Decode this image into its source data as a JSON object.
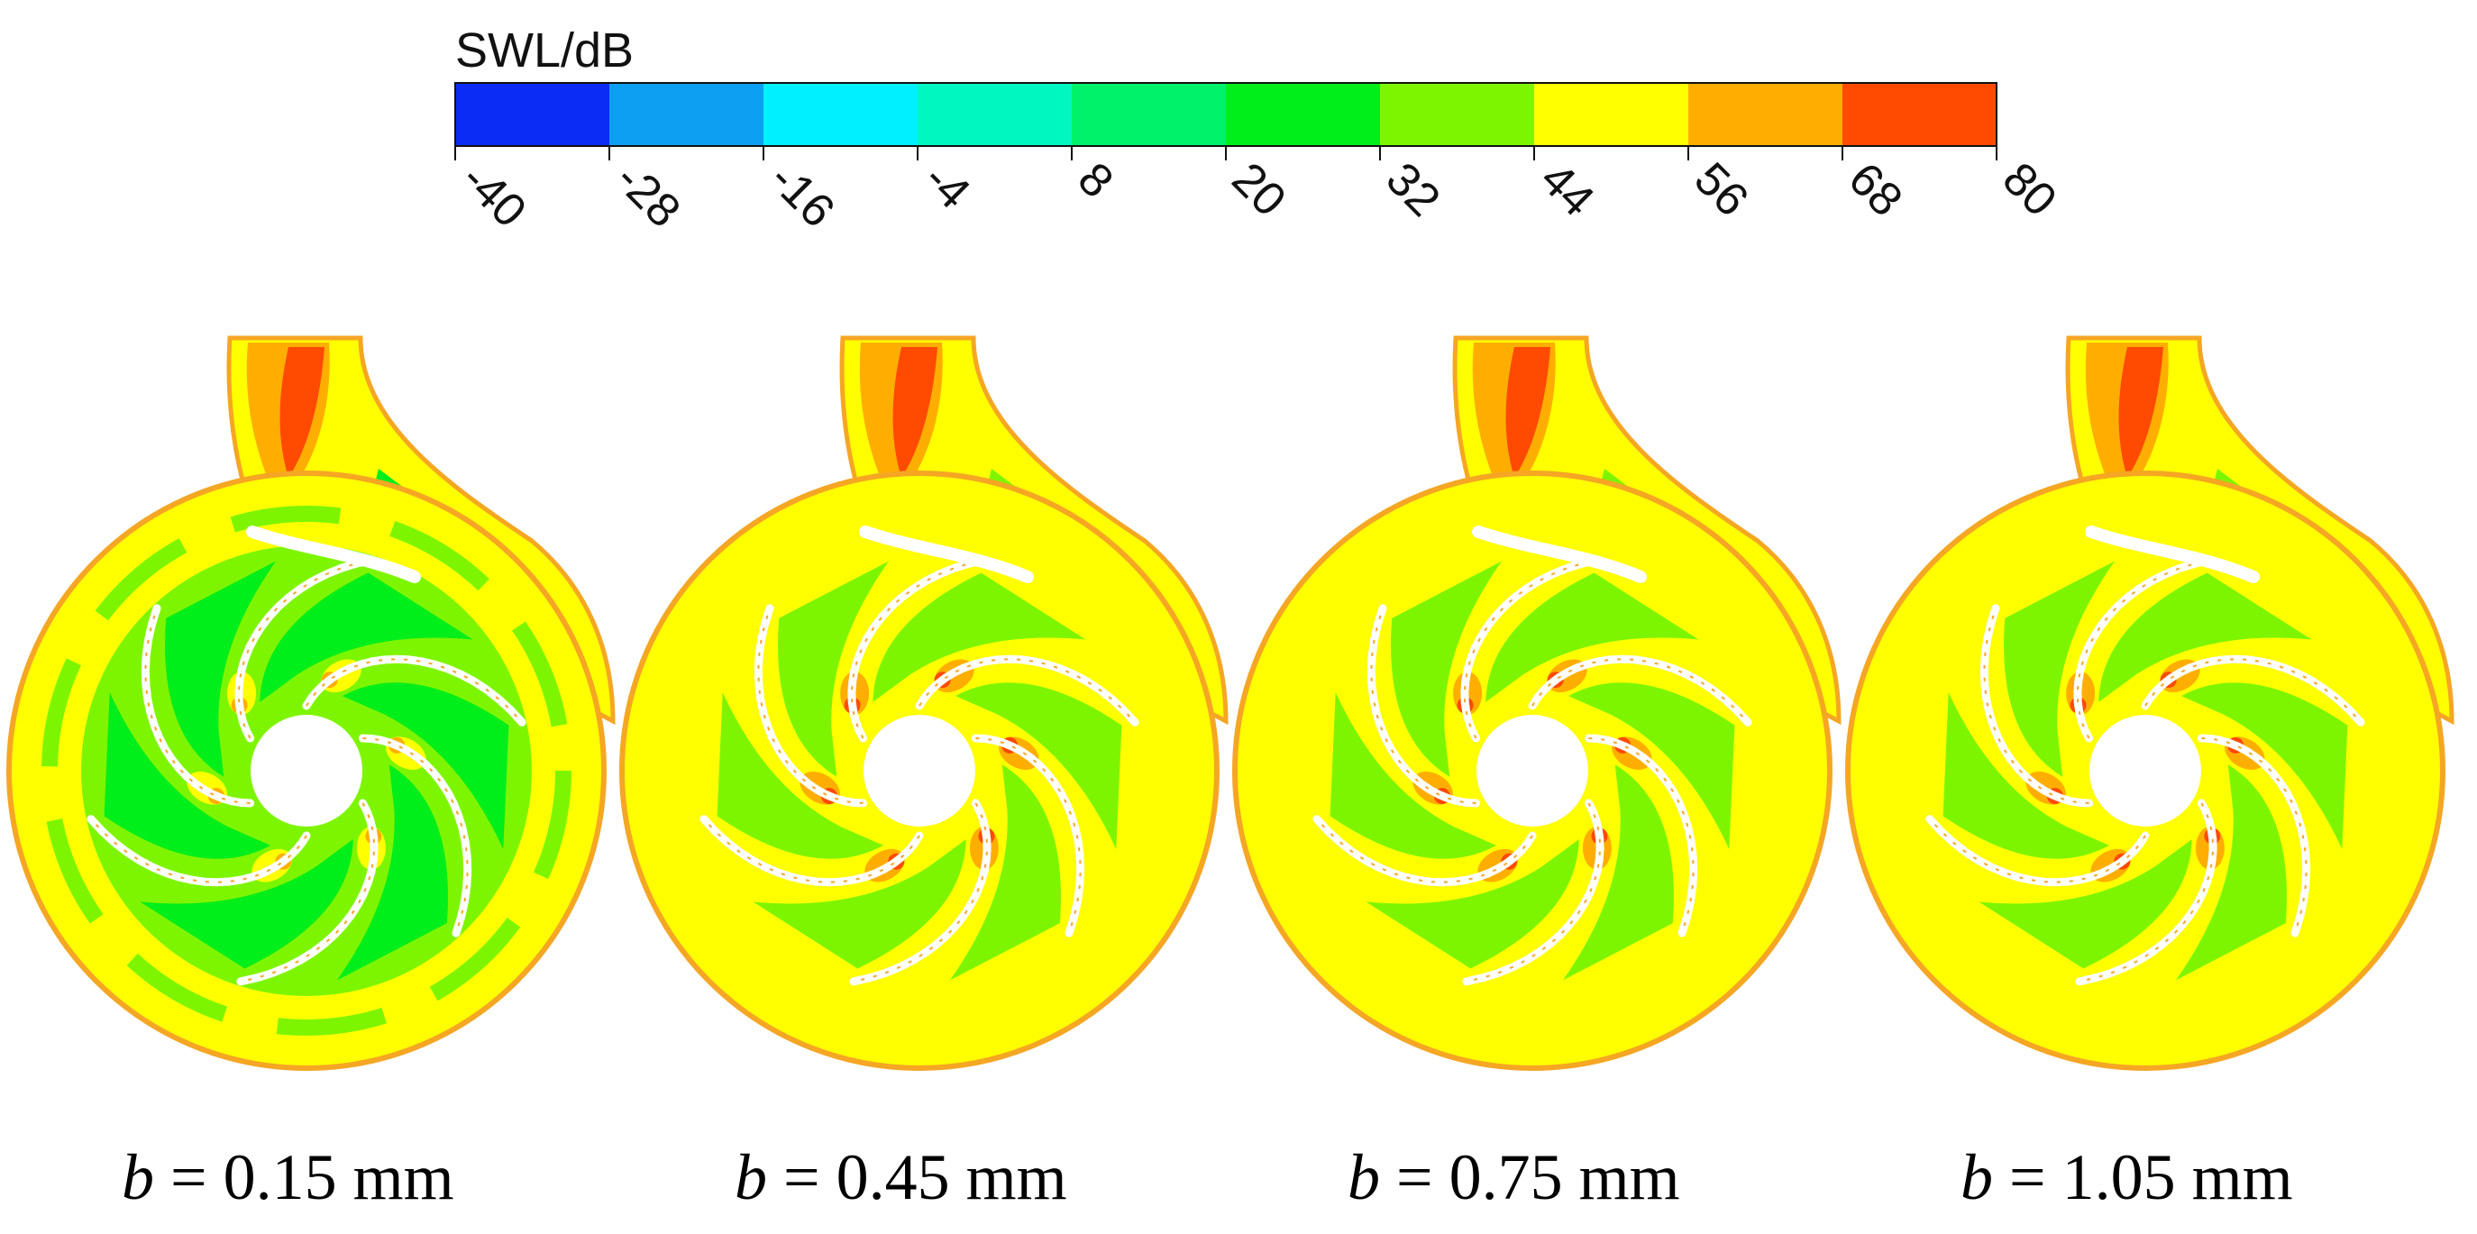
{
  "legend": {
    "title": "SWL/dB",
    "ticks": [
      "-40",
      "-28",
      "-16",
      "-4",
      "8",
      "20",
      "32",
      "44",
      "56",
      "68",
      "80"
    ],
    "colors": [
      "#0a2cf5",
      "#0d9ff2",
      "#00f0ff",
      "#00f7c0",
      "#00f26a",
      "#00ee1a",
      "#7ef500",
      "#ffff00",
      "#ffae00",
      "#ff4a00"
    ]
  },
  "panels": [
    {
      "var": "b",
      "eq": " = ",
      "value": "0.15 mm",
      "level": "low"
    },
    {
      "var": "b",
      "eq": " = ",
      "value": "0.45 mm",
      "level": "mid"
    },
    {
      "var": "b",
      "eq": " = ",
      "value": "0.75 mm",
      "level": "high"
    },
    {
      "var": "b",
      "eq": " = ",
      "value": "1.05 mm",
      "level": "high"
    }
  ]
}
